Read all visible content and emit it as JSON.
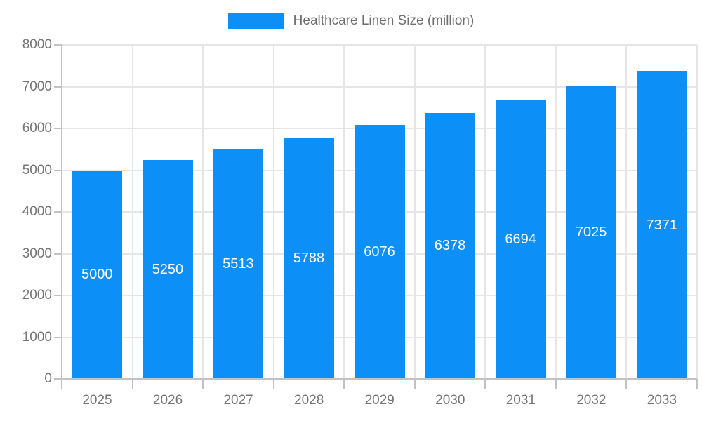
{
  "chart_data": {
    "type": "bar",
    "title": "Healthcare Linen Size (million)",
    "legend_position": "top",
    "categories": [
      "2025",
      "2026",
      "2027",
      "2028",
      "2029",
      "2030",
      "2031",
      "2032",
      "2033"
    ],
    "series": [
      {
        "name": "Healthcare Linen Size (million)",
        "values": [
          5000,
          5250,
          5513,
          5788,
          6076,
          6378,
          6694,
          7025,
          7371
        ]
      }
    ],
    "bar_value_labels": [
      "5000",
      "5250",
      "5513",
      "5788",
      "6076",
      "6378",
      "6694",
      "7025",
      "7371"
    ],
    "xlabel": "",
    "ylabel": "",
    "ylim": [
      0,
      8000
    ],
    "ytick_step": 1000,
    "ytick_labels": [
      "0",
      "1000",
      "2000",
      "3000",
      "4000",
      "5000",
      "6000",
      "7000",
      "8000"
    ],
    "grid": true,
    "colors": {
      "bar": "#0d8ff8",
      "grid": "#e6e6e6",
      "axis": "#c2c2c2",
      "tick_label": "#757575",
      "bar_label": "#ffffff",
      "legend_text": "#6e6e6e",
      "background": "#ffffff"
    }
  }
}
